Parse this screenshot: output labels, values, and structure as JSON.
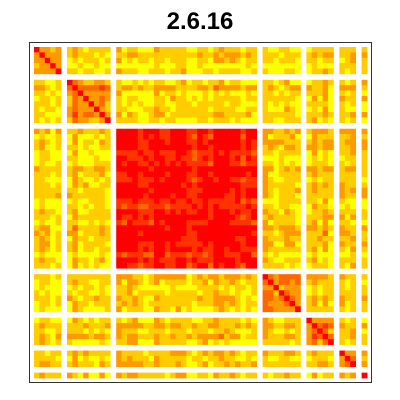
{
  "chart_data": {
    "type": "heatmap",
    "title": "2.6.16",
    "xlabel": "",
    "ylabel": "",
    "grid": false,
    "legend": "none",
    "colormap": [
      "#ff0000",
      "#ff3300",
      "#ff6600",
      "#ff9900",
      "#ffcc00",
      "#ffff00"
    ],
    "blank_color": "#ffffff",
    "cluster_sizes": [
      5,
      8,
      26,
      7,
      5,
      3,
      1
    ],
    "cluster_self_level": [
      0.55,
      0.5,
      0.15,
      0.45,
      0.55,
      0.6,
      0.5
    ],
    "diagonal_level": 0.0,
    "between_cluster_level": 0.75
  }
}
